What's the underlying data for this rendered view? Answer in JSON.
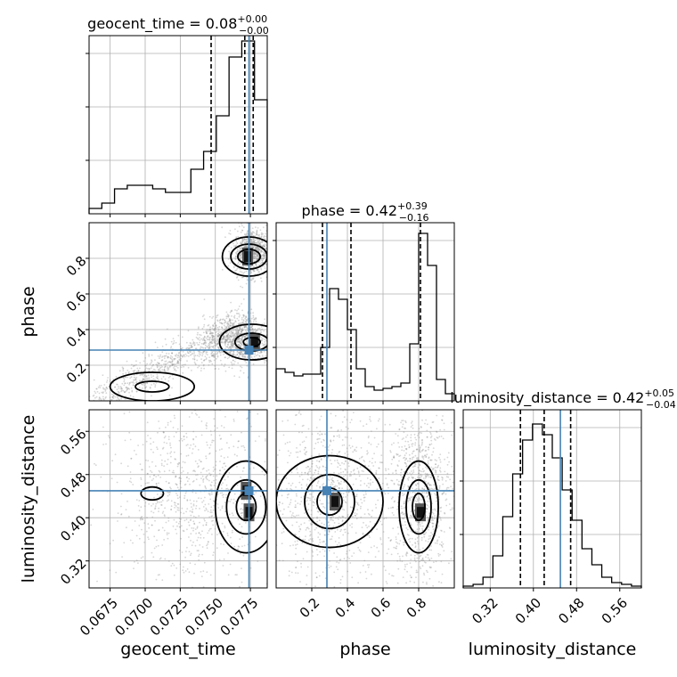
{
  "chart_data": {
    "type": "corner",
    "grid": true,
    "truth_color": "#4682b4",
    "parameters": [
      {
        "name": "geocent_time",
        "label": "geocent_time",
        "title": "geocent_time = 0.08",
        "title_sup": "+0.00",
        "title_sub": "−0.00",
        "range": [
          0.066,
          0.0787
        ],
        "ticks": [
          0.0675,
          0.07,
          0.0725,
          0.075,
          0.0775
        ],
        "tick_labels": [
          "0.0675",
          "0.0700",
          "0.0725",
          "0.0750",
          "0.0775"
        ],
        "quantiles": [
          0.0747,
          0.0771,
          0.0777
        ],
        "truth": 0.0774,
        "hist_max": 10,
        "hist_ticks": [
          3,
          6,
          9
        ],
        "hist_bins": [
          0.3,
          0.6,
          1.4,
          1.6,
          1.6,
          1.4,
          1.2,
          1.2,
          2.5,
          3.5,
          5.5,
          8.8,
          9.7,
          6.4
        ]
      },
      {
        "name": "phase",
        "label": "phase",
        "title": "phase = 0.42",
        "title_sup": "+0.39",
        "title_sub": "−0.16",
        "range": [
          0,
          1
        ],
        "ticks": [
          0.2,
          0.4,
          0.6,
          0.8
        ],
        "tick_labels": [
          "0.2",
          "0.4",
          "0.6",
          "0.8"
        ],
        "quantiles": [
          0.26,
          0.42,
          0.81
        ],
        "truth": 0.285,
        "hist_max": 10,
        "hist_ticks": [
          3,
          6,
          9
        ],
        "hist_bins": [
          1.8,
          1.6,
          1.4,
          1.5,
          1.5,
          3.0,
          6.3,
          5.7,
          4.0,
          1.8,
          0.8,
          0.6,
          0.7,
          0.8,
          1.0,
          3.2,
          9.4,
          7.6,
          1.2,
          0.4
        ]
      },
      {
        "name": "luminosity_distance",
        "label": "luminosity_distance",
        "title": "luminosity_distance = 0.42",
        "title_sup": "+0.05",
        "title_sub": "−0.04",
        "range": [
          0.27,
          0.6
        ],
        "ticks": [
          0.32,
          0.4,
          0.48,
          0.56
        ],
        "tick_labels": [
          "0.32",
          "0.40",
          "0.48",
          "0.56"
        ],
        "quantiles": [
          0.376,
          0.42,
          0.469
        ],
        "truth": 0.45,
        "hist_max": 10,
        "hist_ticks": [
          3,
          6,
          9
        ],
        "hist_bins": [
          0.1,
          0.2,
          0.6,
          1.8,
          4.0,
          6.4,
          8.3,
          9.2,
          8.6,
          7.3,
          5.5,
          3.8,
          2.2,
          1.3,
          0.6,
          0.3,
          0.2,
          0.1
        ]
      }
    ],
    "pairs": [
      {
        "x": "geocent_time",
        "y": "phase",
        "point_clusters": [
          {
            "x": [
              0.0665,
              0.0775
            ],
            "y": [
              0.0,
              0.45
            ],
            "band": true
          },
          {
            "x": [
              0.0765,
              0.0787
            ],
            "y": [
              0.72,
              0.95
            ]
          },
          {
            "x": [
              0.0745,
              0.0787
            ],
            "y": [
              0.22,
              0.45
            ]
          }
        ],
        "contours": [
          {
            "cx": 0.0774,
            "cy": 0.81,
            "rx": [
              0.0008,
              0.0013,
              0.0019
            ],
            "ry": [
              0.04,
              0.07,
              0.11
            ]
          },
          {
            "cx": 0.0776,
            "cy": 0.33,
            "rx": [
              0.0006,
              0.0012,
              0.0023
            ],
            "ry": [
              0.025,
              0.05,
              0.1
            ]
          },
          {
            "cx": 0.0705,
            "cy": 0.08,
            "rx": [
              0.0012,
              0.003
            ],
            "ry": [
              0.03,
              0.08
            ]
          }
        ],
        "dense_cells": [
          {
            "x": 0.0773,
            "y": 0.81
          },
          {
            "x": 0.0778,
            "y": 0.33
          }
        ]
      },
      {
        "x": "geocent_time",
        "y": "luminosity_distance",
        "point_clusters": [
          {
            "x": [
              0.0685,
              0.0787
            ],
            "y": [
              0.3,
              0.58
            ]
          }
        ],
        "contours": [
          {
            "cx": 0.0772,
            "cy": 0.42,
            "rx": [
              0.0007,
              0.0014,
              0.0022
            ],
            "ry": [
              0.025,
              0.05,
              0.085
            ]
          },
          {
            "cx": 0.0705,
            "cy": 0.445,
            "rx": [
              0.0008
            ],
            "ry": [
              0.012
            ]
          }
        ],
        "dense_cells": [
          {
            "x": 0.0774,
            "y": 0.41
          },
          {
            "x": 0.0772,
            "y": 0.45
          }
        ]
      },
      {
        "x": "phase",
        "y": "luminosity_distance",
        "point_clusters": [
          {
            "x": [
              0.0,
              0.6
            ],
            "y": [
              0.3,
              0.58
            ]
          },
          {
            "x": [
              0.65,
              0.97
            ],
            "y": [
              0.3,
              0.58
            ]
          }
        ],
        "contours": [
          {
            "cx": 0.3,
            "cy": 0.43,
            "rx": [
              0.07,
              0.14,
              0.3
            ],
            "ry": [
              0.025,
              0.05,
              0.085
            ]
          },
          {
            "cx": 0.8,
            "cy": 0.42,
            "rx": [
              0.035,
              0.07,
              0.11
            ],
            "ry": [
              0.025,
              0.05,
              0.085
            ]
          }
        ],
        "dense_cells": [
          {
            "x": 0.81,
            "y": 0.41
          },
          {
            "x": 0.33,
            "y": 0.43
          }
        ]
      }
    ]
  }
}
